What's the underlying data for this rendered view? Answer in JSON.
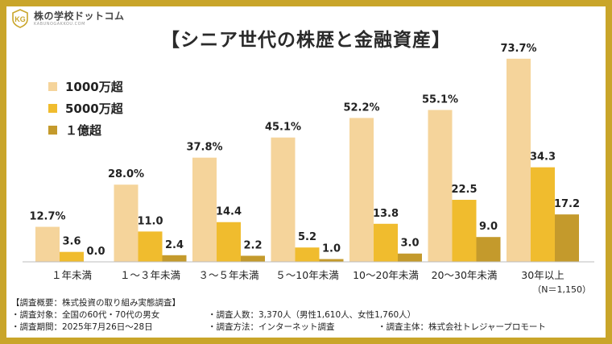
{
  "logo": {
    "name": "株の学校ドットコム",
    "sub": "KABUNOGAKKOU.COM"
  },
  "title": "【シニア世代の株歴と金融資産】",
  "colors": {
    "frame": "#c9a52a",
    "s1": "#f5d49b",
    "s2": "#f0bc2e",
    "s3": "#c49a2c"
  },
  "chart_data": {
    "type": "bar",
    "title": "【シニア世代の株歴と金融資産】",
    "categories": [
      "１年未満",
      "１～３年未満",
      "３～５年未満",
      "５～10年未満",
      "10～20年未満",
      "20～30年未満",
      "30年以上"
    ],
    "series": [
      {
        "name": "1000万超",
        "values": [
          12.7,
          28.0,
          37.8,
          45.1,
          52.2,
          55.1,
          73.7
        ],
        "labels": [
          "12.7%",
          "28.0%",
          "37.8%",
          "45.1%",
          "52.2%",
          "55.1%",
          "73.7%"
        ]
      },
      {
        "name": "5000万超",
        "values": [
          3.6,
          11.0,
          14.4,
          5.2,
          13.8,
          22.5,
          34.3
        ],
        "labels": [
          "3.6",
          "11.0",
          "14.4",
          "5.2",
          "13.8",
          "22.5",
          "34.3"
        ]
      },
      {
        "name": "１億超",
        "values": [
          0.0,
          2.4,
          2.2,
          1.0,
          3.0,
          9.0,
          17.2
        ],
        "labels": [
          "0.0",
          "2.4",
          "2.2",
          "1.0",
          "3.0",
          "9.0",
          "17.2"
        ]
      }
    ],
    "ylim": [
      0,
      76
    ],
    "legend_position": "top-left",
    "grid": false
  },
  "note_n": "（N＝1,150）",
  "footer": {
    "heading": "【調査概要：株式投資の取り組み実態調査】",
    "target": "・調査対象：全国の60代・70代の男女",
    "count": "・調査人数：3,370人（男性1,610人、女性1,760人）",
    "period": "・調査期間：2025年7月26日～28日",
    "method": "・調査方法：インターネット調査",
    "sponsor": "・調査主体：株式会社トレジャープロモート"
  }
}
